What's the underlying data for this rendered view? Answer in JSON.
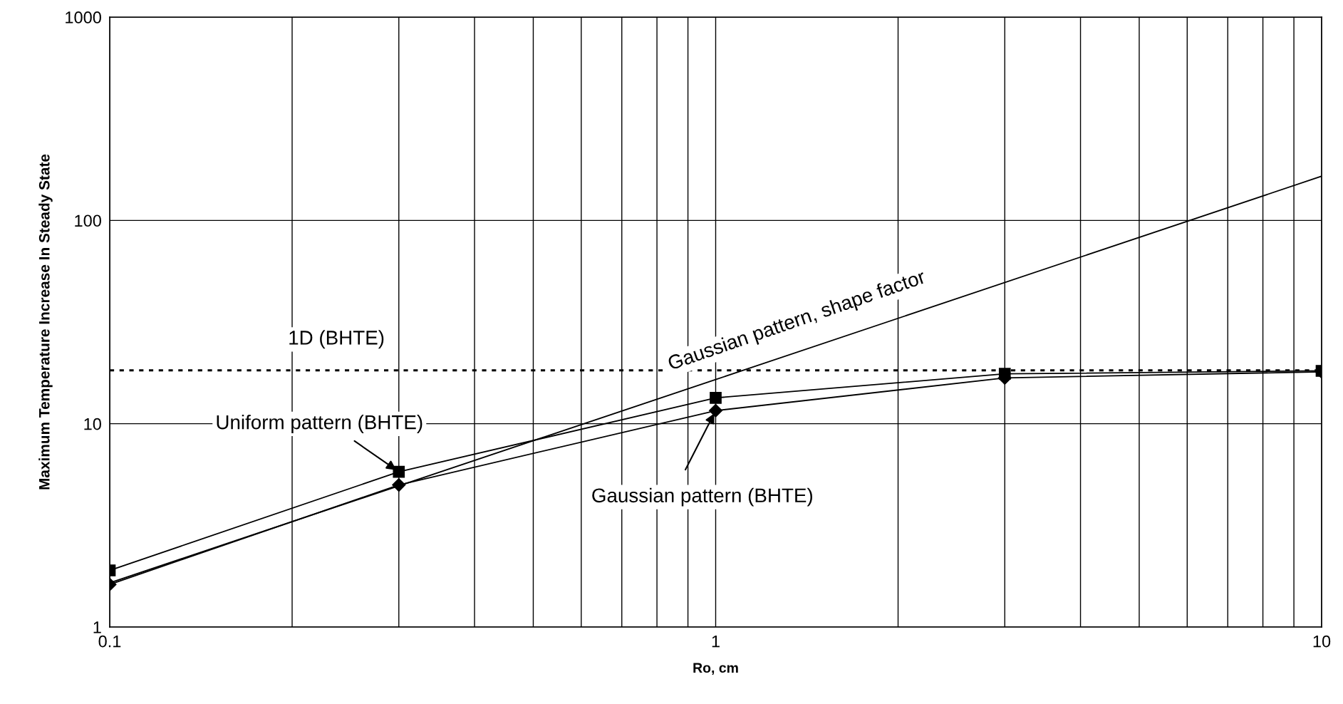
{
  "chart_data": {
    "type": "line",
    "log": "xy",
    "xlabel": "Ro, cm",
    "ylabel": "Maximum Temperature Increase In Steady State",
    "x": [
      0.1,
      0.3,
      1,
      3,
      10
    ],
    "xlim": [
      0.1,
      10
    ],
    "xticks": [
      0.1,
      1,
      10
    ],
    "ylim": [
      1,
      1000
    ],
    "yticks": [
      1,
      10,
      100,
      1000
    ],
    "grid": true,
    "series": [
      {
        "color": "#000000",
        "marker": "square",
        "values": [
          1.9,
          5.8,
          13.4,
          17.6,
          18.2
        ]
      },
      {
        "color": "#000000",
        "marker": "diamond",
        "values": [
          1.62,
          5.0,
          11.6,
          16.8,
          18.0
        ]
      },
      {
        "color": "#000000",
        "marker": "none",
        "x": [
          0.1,
          1,
          10
        ],
        "values": [
          1.65,
          16.5,
          165
        ]
      }
    ],
    "ref_lines": [
      {
        "axis": "y",
        "value": 18.3,
        "label": "1D (BHTE)",
        "line_style": "dotted",
        "color": "#000000"
      }
    ],
    "annotations": [
      {
        "text": "Uniform pattern (BHTE)",
        "x": 0.3,
        "y": 5.8
      },
      {
        "text": "Gaussian pattern (BHTE)",
        "x": 1,
        "y": 11.6
      },
      "Gaussian pattern, shape factor"
    ]
  }
}
